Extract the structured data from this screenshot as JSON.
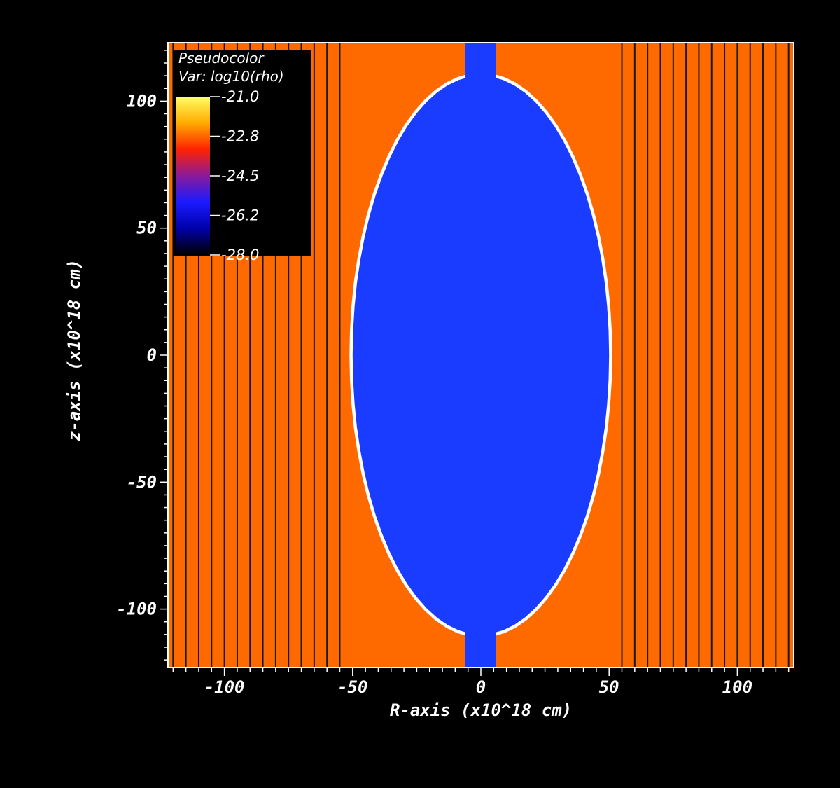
{
  "chart_data": {
    "type": "heatmap",
    "title": "",
    "plot_type_label": "Pseudocolor",
    "variable_label": "Var: log10(rho)",
    "xlabel": "R-axis (x10^18 cm)",
    "ylabel": "z-axis (x10^18 cm)",
    "xlim": [
      -122,
      122
    ],
    "ylim": [
      -123,
      123
    ],
    "x_ticks": [
      -100,
      -50,
      0,
      50,
      100
    ],
    "x_tick_labels": [
      "-100",
      "-50",
      "0",
      "50",
      "100"
    ],
    "y_ticks": [
      100,
      50,
      0,
      -50,
      -100
    ],
    "y_tick_labels": [
      "100",
      "50",
      "0",
      "-50",
      "-100"
    ],
    "colorbar": {
      "range": [
        -28.0,
        -21.0
      ],
      "tick_labels": [
        "-21.0",
        "-22.8",
        "-24.5",
        "-26.2",
        "-28.0"
      ],
      "colors": [
        "#ffff60",
        "#ffaa00",
        "#ff2200",
        "#8a1a9a",
        "#1a1aff",
        "#0000aa",
        "#000000"
      ]
    },
    "regions": {
      "ambient_log10_rho": -22.6,
      "cavity_log10_rho": -26.0,
      "shell_color": "#ffffff",
      "ambient_color": "#ff6a00",
      "cavity_color": "#1a3cff",
      "field_line_color": "#1a1a1a"
    },
    "cavity_extent": {
      "r_max": 50,
      "z_max": 110
    },
    "jet": {
      "r_half_width": 6,
      "z_range": [
        -123,
        123
      ]
    },
    "field_lines_x": [
      -120,
      -115,
      -110,
      -105,
      -100,
      -95,
      -90,
      -85,
      -80,
      -75,
      -70,
      -65,
      -60,
      -55,
      55,
      60,
      65,
      70,
      75,
      80,
      85,
      90,
      95,
      100,
      105,
      110,
      115,
      120
    ],
    "legend_position": "top-left"
  }
}
